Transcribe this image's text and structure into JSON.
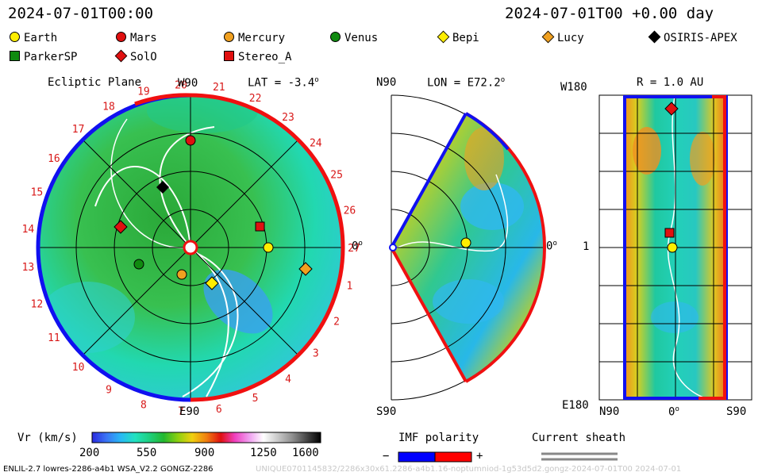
{
  "header": {
    "left_time": "2024-07-01T00:00",
    "right_time": "2024-07-01T00 +0.00 day"
  },
  "legend": [
    {
      "name": "Earth",
      "shape": "circle",
      "color": "#ffee00"
    },
    {
      "name": "Mars",
      "shape": "circle",
      "color": "#e01010"
    },
    {
      "name": "Mercury",
      "shape": "circle",
      "color": "#f0a020"
    },
    {
      "name": "Venus",
      "shape": "circle",
      "color": "#108a10"
    },
    {
      "name": "Bepi",
      "shape": "diamond",
      "color": "#ffee00"
    },
    {
      "name": "Lucy",
      "shape": "diamond",
      "color": "#f0a020"
    },
    {
      "name": "OSIRIS-APEX",
      "shape": "diamond",
      "color": "#000000"
    },
    {
      "name": "ParkerSP",
      "shape": "square",
      "color": "#108a10"
    },
    {
      "name": "SolO",
      "shape": "diamond",
      "color": "#e01010"
    },
    {
      "name": "Stereo_A",
      "shape": "square",
      "color": "#e01010"
    }
  ],
  "ecliptic": {
    "title": "Ecliptic Plane",
    "top_label": "W90",
    "lat_label": "LAT = -3.4",
    "right_label": "0",
    "bottom_label": "E90",
    "degree_mark": "o",
    "carrington_ticks": [
      "1",
      "2",
      "3",
      "4",
      "5",
      "6",
      "7",
      "8",
      "9",
      "10",
      "11",
      "12",
      "13",
      "14",
      "15",
      "16",
      "17",
      "18",
      "19",
      "20",
      "21",
      "22",
      "23",
      "24",
      "25",
      "26",
      "27"
    ]
  },
  "meridional": {
    "top_left": "N90",
    "lon_label": "LON = E72.2",
    "right_label": "0",
    "bottom_left": "S90"
  },
  "latlon": {
    "top_left": "W180",
    "r_label": "R = 1.0 AU",
    "mid_left": "1",
    "bottom_left": "E180",
    "bottom_x": [
      "N90",
      "0",
      "S90"
    ]
  },
  "colorbar": {
    "label": "Vr (km/s)",
    "ticks": [
      "200",
      "550",
      "900",
      "1250",
      "1600"
    ],
    "colors": [
      "#2a2adf",
      "#3a74f5",
      "#28b8f5",
      "#22e2c0",
      "#1ed080",
      "#22b830",
      "#8cd010",
      "#f0d010",
      "#f08010",
      "#e01010",
      "#f040c0",
      "#f0a0f0",
      "#ffffff",
      "#c8c8c8",
      "#909090",
      "#484848",
      "#000000"
    ]
  },
  "imf": {
    "label": "IMF polarity",
    "minus": "−",
    "plus": "+",
    "colors": [
      "#0000ff",
      "#ff0000"
    ]
  },
  "sheath": {
    "label": "Current sheath"
  },
  "footer": {
    "left": "ENLIL-2.7 lowres-2286-a4b1 WSA_V2.2 GONGZ-2286",
    "right": "UNIQUE0701145832/2286x30x61.2286-a4b1.16-noptumniod-1g53d5d2.gongz-2024-07-01T00   2024-07-01"
  }
}
